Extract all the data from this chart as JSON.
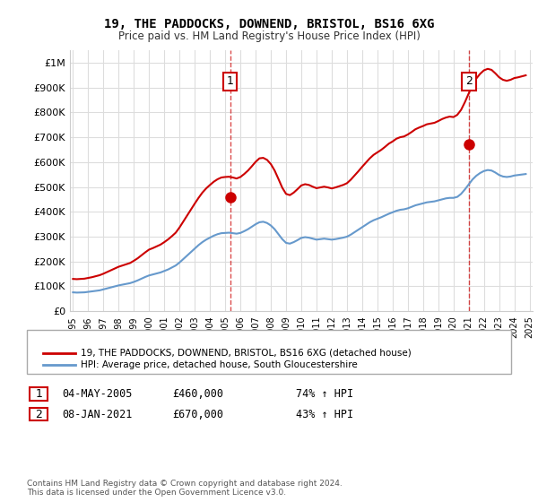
{
  "title": "19, THE PADDOCKS, DOWNEND, BRISTOL, BS16 6XG",
  "subtitle": "Price paid vs. HM Land Registry's House Price Index (HPI)",
  "x_start_year": 1995,
  "x_end_year": 2025,
  "ylim": [
    0,
    1050000
  ],
  "yticks": [
    0,
    100000,
    200000,
    300000,
    400000,
    500000,
    600000,
    700000,
    800000,
    900000,
    1000000
  ],
  "ytick_labels": [
    "£0",
    "£100K",
    "£200K",
    "£300K",
    "£400K",
    "£500K",
    "£600K",
    "£700K",
    "£800K",
    "£900K",
    "£1M"
  ],
  "hpi_color": "#6699cc",
  "price_color": "#cc0000",
  "sale1_year": 2005.33,
  "sale1_price": 460000,
  "sale2_year": 2021.02,
  "sale2_price": 670000,
  "sale1_label": "1",
  "sale2_label": "2",
  "sale1_date": "04-MAY-2005",
  "sale1_amount": "£460,000",
  "sale1_hpi": "74% ↑ HPI",
  "sale2_date": "08-JAN-2021",
  "sale2_amount": "£670,000",
  "sale2_hpi": "43% ↑ HPI",
  "legend_line1": "19, THE PADDOCKS, DOWNEND, BRISTOL, BS16 6XG (detached house)",
  "legend_line2": "HPI: Average price, detached house, South Gloucestershire",
  "footer": "Contains HM Land Registry data © Crown copyright and database right 2024.\nThis data is licensed under the Open Government Licence v3.0.",
  "hpi_data": {
    "years": [
      1995.0,
      1995.25,
      1995.5,
      1995.75,
      1996.0,
      1996.25,
      1996.5,
      1996.75,
      1997.0,
      1997.25,
      1997.5,
      1997.75,
      1998.0,
      1998.25,
      1998.5,
      1998.75,
      1999.0,
      1999.25,
      1999.5,
      1999.75,
      2000.0,
      2000.25,
      2000.5,
      2000.75,
      2001.0,
      2001.25,
      2001.5,
      2001.75,
      2002.0,
      2002.25,
      2002.5,
      2002.75,
      2003.0,
      2003.25,
      2003.5,
      2003.75,
      2004.0,
      2004.25,
      2004.5,
      2004.75,
      2005.0,
      2005.25,
      2005.5,
      2005.75,
      2006.0,
      2006.25,
      2006.5,
      2006.75,
      2007.0,
      2007.25,
      2007.5,
      2007.75,
      2008.0,
      2008.25,
      2008.5,
      2008.75,
      2009.0,
      2009.25,
      2009.5,
      2009.75,
      2010.0,
      2010.25,
      2010.5,
      2010.75,
      2011.0,
      2011.25,
      2011.5,
      2011.75,
      2012.0,
      2012.25,
      2012.5,
      2012.75,
      2013.0,
      2013.25,
      2013.5,
      2013.75,
      2014.0,
      2014.25,
      2014.5,
      2014.75,
      2015.0,
      2015.25,
      2015.5,
      2015.75,
      2016.0,
      2016.25,
      2016.5,
      2016.75,
      2017.0,
      2017.25,
      2017.5,
      2017.75,
      2018.0,
      2018.25,
      2018.5,
      2018.75,
      2019.0,
      2019.25,
      2019.5,
      2019.75,
      2020.0,
      2020.25,
      2020.5,
      2020.75,
      2021.0,
      2021.25,
      2021.5,
      2021.75,
      2022.0,
      2022.25,
      2022.5,
      2022.75,
      2023.0,
      2023.25,
      2023.5,
      2023.75,
      2024.0,
      2024.25,
      2024.5,
      2024.75
    ],
    "values": [
      76000,
      75000,
      75500,
      76000,
      78000,
      80000,
      82000,
      84000,
      88000,
      92000,
      96000,
      100000,
      104000,
      107000,
      110000,
      113000,
      118000,
      124000,
      131000,
      138000,
      144000,
      148000,
      152000,
      156000,
      162000,
      168000,
      176000,
      184000,
      196000,
      210000,
      224000,
      238000,
      252000,
      266000,
      278000,
      288000,
      296000,
      304000,
      310000,
      314000,
      315000,
      316000,
      314000,
      312000,
      315000,
      322000,
      330000,
      340000,
      350000,
      358000,
      360000,
      355000,
      345000,
      330000,
      310000,
      290000,
      275000,
      272000,
      278000,
      286000,
      295000,
      298000,
      296000,
      292000,
      288000,
      290000,
      292000,
      290000,
      288000,
      290000,
      293000,
      296000,
      300000,
      308000,
      318000,
      328000,
      338000,
      348000,
      358000,
      366000,
      372000,
      378000,
      385000,
      392000,
      398000,
      404000,
      408000,
      410000,
      414000,
      420000,
      426000,
      430000,
      434000,
      438000,
      440000,
      442000,
      446000,
      450000,
      454000,
      456000,
      456000,
      460000,
      472000,
      490000,
      510000,
      530000,
      545000,
      556000,
      564000,
      568000,
      566000,
      558000,
      548000,
      542000,
      540000,
      542000,
      546000,
      548000,
      550000,
      552000
    ]
  },
  "price_index_data": {
    "years": [
      1995.0,
      1995.25,
      1995.5,
      1995.75,
      1996.0,
      1996.25,
      1996.5,
      1996.75,
      1997.0,
      1997.25,
      1997.5,
      1997.75,
      1998.0,
      1998.25,
      1998.5,
      1998.75,
      1999.0,
      1999.25,
      1999.5,
      1999.75,
      2000.0,
      2000.25,
      2000.5,
      2000.75,
      2001.0,
      2001.25,
      2001.5,
      2001.75,
      2002.0,
      2002.25,
      2002.5,
      2002.75,
      2003.0,
      2003.25,
      2003.5,
      2003.75,
      2004.0,
      2004.25,
      2004.5,
      2004.75,
      2005.0,
      2005.25,
      2005.5,
      2005.75,
      2006.0,
      2006.25,
      2006.5,
      2006.75,
      2007.0,
      2007.25,
      2007.5,
      2007.75,
      2008.0,
      2008.25,
      2008.5,
      2008.75,
      2009.0,
      2009.25,
      2009.5,
      2009.75,
      2010.0,
      2010.25,
      2010.5,
      2010.75,
      2011.0,
      2011.25,
      2011.5,
      2011.75,
      2012.0,
      2012.25,
      2012.5,
      2012.75,
      2013.0,
      2013.25,
      2013.5,
      2013.75,
      2014.0,
      2014.25,
      2014.5,
      2014.75,
      2015.0,
      2015.25,
      2015.5,
      2015.75,
      2016.0,
      2016.25,
      2016.5,
      2016.75,
      2017.0,
      2017.25,
      2017.5,
      2017.75,
      2018.0,
      2018.25,
      2018.5,
      2018.75,
      2019.0,
      2019.25,
      2019.5,
      2019.75,
      2020.0,
      2020.25,
      2020.5,
      2020.75,
      2021.0,
      2021.25,
      2021.5,
      2021.75,
      2022.0,
      2022.25,
      2022.5,
      2022.75,
      2023.0,
      2023.25,
      2023.5,
      2023.75,
      2024.0,
      2024.25,
      2024.5,
      2024.75
    ],
    "values": [
      130000,
      129000,
      130000,
      131000,
      134000,
      137000,
      141000,
      145000,
      151000,
      158000,
      165000,
      172000,
      179000,
      184000,
      189000,
      194000,
      203000,
      213000,
      225000,
      237000,
      248000,
      254000,
      261000,
      268000,
      278000,
      289000,
      302000,
      316000,
      337000,
      361000,
      385000,
      409000,
      433000,
      456000,
      477000,
      494000,
      508000,
      521000,
      531000,
      538000,
      540000,
      541000,
      538000,
      534000,
      540000,
      552000,
      566000,
      583000,
      601000,
      615000,
      617000,
      609000,
      592000,
      566000,
      532000,
      497000,
      472000,
      467000,
      477000,
      491000,
      506000,
      511000,
      508000,
      501000,
      495000,
      498000,
      501000,
      498000,
      494000,
      498000,
      503000,
      508000,
      515000,
      529000,
      546000,
      563000,
      581000,
      598000,
      615000,
      629000,
      639000,
      649000,
      661000,
      674000,
      683000,
      694000,
      700000,
      703000,
      711000,
      721000,
      732000,
      739000,
      745000,
      752000,
      755000,
      758000,
      765000,
      773000,
      779000,
      783000,
      781000,
      790000,
      810000,
      841000,
      876000,
      910000,
      936000,
      955000,
      969000,
      975000,
      971000,
      957000,
      941000,
      931000,
      927000,
      931000,
      938000,
      941000,
      945000,
      949000
    ]
  }
}
